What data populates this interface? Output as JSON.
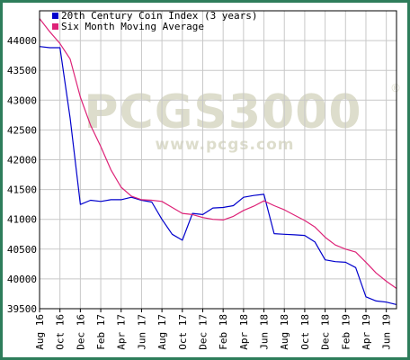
{
  "chart_data": {
    "type": "line",
    "x": [
      "Aug 16",
      "Sep 16",
      "Oct 16",
      "Nov 16",
      "Dec 16",
      "Jan 17",
      "Feb 17",
      "Mar 17",
      "Apr 17",
      "May 17",
      "Jun 17",
      "Jul 17",
      "Aug 17",
      "Sep 17",
      "Oct 17",
      "Nov 17",
      "Dec 17",
      "Jan 18",
      "Feb 18",
      "Mar 18",
      "Apr 18",
      "May 18",
      "Jun 18",
      "Jul 18",
      "Aug 18",
      "Sep 18",
      "Oct 18",
      "Nov 18",
      "Dec 18",
      "Jan 19",
      "Feb 19",
      "Mar 19",
      "Apr 19",
      "May 19",
      "Jun 19",
      "Jul 19"
    ],
    "tick_labels": [
      "Aug 16",
      "Oct 16",
      "Dec 16",
      "Feb 17",
      "Apr 17",
      "Jun 17",
      "Aug 17",
      "Oct 17",
      "Dec 17",
      "Feb 18",
      "Apr 18",
      "Jun 18",
      "Aug 18",
      "Oct 18",
      "Dec 18",
      "Feb 19",
      "Apr 19",
      "Jun 19"
    ],
    "series": [
      {
        "name": "20th Century Coin Index (3 years)",
        "color": "#0000cc",
        "values": [
          43900,
          43880,
          43880,
          42700,
          41250,
          41320,
          41300,
          41330,
          41330,
          41370,
          41320,
          41290,
          41000,
          40750,
          40650,
          41100,
          41080,
          41190,
          41200,
          41230,
          41370,
          41400,
          41420,
          40760,
          40750,
          40740,
          40730,
          40620,
          40320,
          40290,
          40280,
          40190,
          39700,
          39630,
          39610,
          39570
        ]
      },
      {
        "name": "Six Month Moving Average",
        "color": "#dd2277",
        "values": [
          44370,
          44150,
          43950,
          43690,
          43050,
          42580,
          42220,
          41830,
          41540,
          41390,
          41330,
          41320,
          41300,
          41200,
          41100,
          41080,
          41030,
          41000,
          40990,
          41050,
          41150,
          41220,
          41310,
          41230,
          41160,
          41070,
          40980,
          40870,
          40700,
          40570,
          40500,
          40450,
          40280,
          40100,
          39960,
          39840
        ]
      }
    ],
    "title": "",
    "xlabel": "",
    "ylabel": "",
    "ylim": [
      39500,
      44500
    ],
    "yticks": [
      39500,
      40000,
      40500,
      41000,
      41500,
      42000,
      42500,
      43000,
      43500,
      44000
    ],
    "grid": true,
    "legend_position": "top-left"
  },
  "watermark": {
    "logo": "PCGS3000",
    "url": "www.pcgs.com",
    "registered": "®"
  },
  "colors": {
    "frame": "#2e7d5b",
    "grid": "#c8c8c8",
    "watermark": "#ddddcc"
  }
}
